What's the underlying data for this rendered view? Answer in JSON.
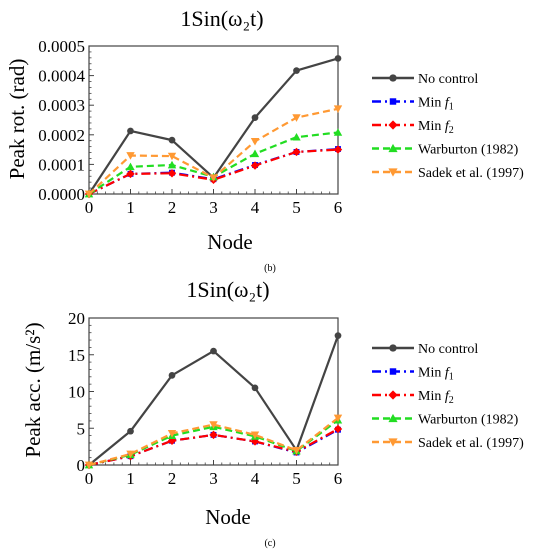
{
  "figure": {
    "panels": [
      {
        "caption": "(b)",
        "chart_data": {
          "type": "line",
          "title": "1Sin(ω₂t)",
          "xlabel": "Node",
          "ylabel": "Peak rot. (rad)",
          "x": [
            0,
            1,
            2,
            3,
            4,
            5,
            6
          ],
          "xlim": [
            0,
            6
          ],
          "ylim": [
            0,
            0.0005
          ],
          "xticks": [
            "0",
            "1",
            "2",
            "3",
            "4",
            "5",
            "6"
          ],
          "yticks": [
            {
              "value": 0,
              "label": "0.0000"
            },
            {
              "value": 0.0001,
              "label": "0.0001"
            },
            {
              "value": 0.0002,
              "label": "0.0002"
            },
            {
              "value": 0.0003,
              "label": "0.0003"
            },
            {
              "value": 0.0004,
              "label": "0.0004"
            },
            {
              "value": 0.0005,
              "label": "0.0005"
            }
          ],
          "grid": false,
          "legend_position": "right",
          "series": [
            {
              "name": "No control",
              "marker": "circle",
              "color": "#444444",
              "dash": "solid",
              "values": [
                0,
                0.000213,
                0.000182,
                5.5e-05,
                0.000258,
                0.000417,
                0.000458
              ]
            },
            {
              "name": "Min f1",
              "marker": "square",
              "color": "#0000ff",
              "dash": "dashdot",
              "values": [
                0,
                6.8e-05,
                7.2e-05,
                5e-05,
                9.8e-05,
                0.000142,
                0.000152
              ]
            },
            {
              "name": "Min f2",
              "marker": "diamond",
              "color": "#ff0000",
              "dash": "dashdot",
              "values": [
                0,
                6.8e-05,
                7e-05,
                4.8e-05,
                9.6e-05,
                0.000142,
                0.00015
              ]
            },
            {
              "name": "Warburton (1982)",
              "marker": "triangle",
              "color": "#22dd22",
              "dash": "dash",
              "values": [
                0,
                9.2e-05,
                9.8e-05,
                5.8e-05,
                0.000136,
                0.000192,
                0.000208
              ]
            },
            {
              "name": "Sadek et al. (1997)",
              "marker": "triangle-down",
              "color": "#ff9933",
              "dash": "dash",
              "values": [
                0,
                0.00013,
                0.000128,
                5.5e-05,
                0.000178,
                0.000258,
                0.000288
              ]
            }
          ]
        }
      },
      {
        "caption": "(c)",
        "chart_data": {
          "type": "line",
          "title": "1Sin(ω₂t)",
          "xlabel": "Node",
          "ylabel": "Peak acc. (m/s²)",
          "x": [
            0,
            1,
            2,
            3,
            4,
            5,
            6
          ],
          "xlim": [
            0,
            6
          ],
          "ylim": [
            0,
            20
          ],
          "xticks": [
            "0",
            "1",
            "2",
            "3",
            "4",
            "5",
            "6"
          ],
          "yticks": [
            {
              "value": 0,
              "label": "0"
            },
            {
              "value": 5,
              "label": "5"
            },
            {
              "value": 10,
              "label": "10"
            },
            {
              "value": 15,
              "label": "15"
            },
            {
              "value": 20,
              "label": "20"
            }
          ],
          "grid": false,
          "legend_position": "right",
          "series": [
            {
              "name": "No control",
              "marker": "circle",
              "color": "#444444",
              "dash": "solid",
              "values": [
                0,
                4.6,
                12.2,
                15.5,
                10.5,
                2.0,
                17.6
              ]
            },
            {
              "name": "Min f1",
              "marker": "square",
              "color": "#0000ff",
              "dash": "dashdot",
              "values": [
                0,
                1.2,
                3.3,
                4.1,
                3.2,
                1.7,
                4.8
              ]
            },
            {
              "name": "Min f2",
              "marker": "diamond",
              "color": "#ff0000",
              "dash": "dashdot",
              "values": [
                0,
                1.2,
                3.3,
                4.1,
                3.2,
                1.8,
                4.9
              ]
            },
            {
              "name": "Warburton (1982)",
              "marker": "triangle",
              "color": "#22dd22",
              "dash": "dash",
              "values": [
                0,
                1.4,
                4.0,
                5.2,
                3.9,
                1.9,
                6.1
              ]
            },
            {
              "name": "Sadek et al. (1997)",
              "marker": "triangle-down",
              "color": "#ff9933",
              "dash": "dash",
              "values": [
                0,
                1.5,
                4.3,
                5.5,
                4.1,
                2.0,
                6.4
              ]
            }
          ]
        }
      }
    ]
  }
}
